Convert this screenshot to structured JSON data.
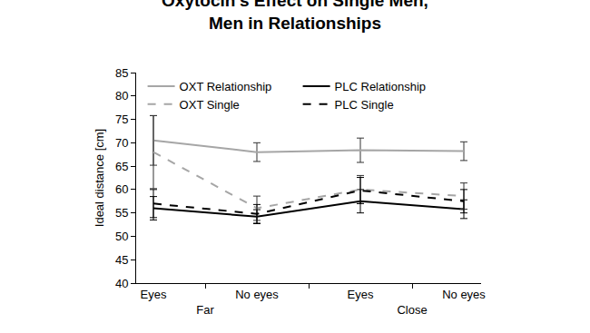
{
  "chart_data": {
    "type": "line",
    "title": "Oxytocin's Effect on Single Men,\nMen in Relationships",
    "y_label": "Ideal distance [cm]",
    "categories": [
      [
        "Far",
        "Eyes"
      ],
      [
        "Far",
        "No eyes"
      ],
      [
        "Close",
        "Eyes"
      ],
      [
        "Close",
        "No eyes"
      ]
    ],
    "series": [
      {
        "name": "OXT Relationship",
        "color": "#a6a6a6",
        "line_style": "solid",
        "values": [
          70.5,
          68.0,
          68.4,
          68.2
        ],
        "errors": [
          5.3,
          2.0,
          2.6,
          2.0
        ]
      },
      {
        "name": "PLC Relationship",
        "color": "#000000",
        "line_style": "solid",
        "values": [
          56.0,
          54.2,
          57.5,
          55.8
        ],
        "errors": [
          2.5,
          1.5,
          2.5,
          2.0
        ]
      },
      {
        "name": "OXT Single",
        "color": "#a6a6a6",
        "line_style": "dash",
        "values": [
          68.0,
          56.0,
          60.0,
          58.6
        ],
        "errors": [
          7.8,
          2.6,
          3.0,
          2.8
        ]
      },
      {
        "name": "PLC Single",
        "color": "#000000",
        "line_style": "dash",
        "values": [
          57.0,
          54.8,
          59.8,
          57.5
        ],
        "errors": [
          3.0,
          2.0,
          2.8,
          2.5
        ]
      }
    ],
    "ylim": [
      40,
      85
    ],
    "yticks": [
      40,
      45,
      50,
      55,
      60,
      65,
      70,
      75,
      80,
      85
    ],
    "grid": false,
    "legend": "top"
  }
}
